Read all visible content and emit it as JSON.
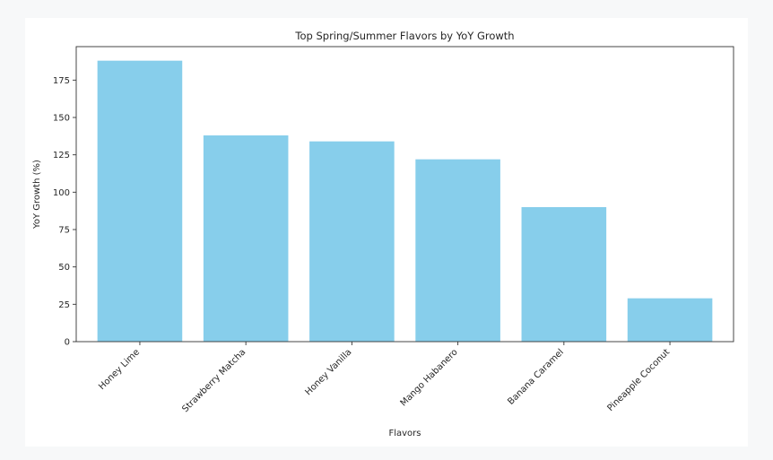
{
  "chart_data": {
    "type": "bar",
    "title": "Top Spring/Summer Flavors by YoY Growth",
    "xlabel": "Flavors",
    "ylabel": "YoY Growth (%)",
    "categories": [
      "Honey Lime",
      "Strawberry Matcha",
      "Honey Vanilla",
      "Mango Habanero",
      "Banana Caramel",
      "Pineapple Coconut"
    ],
    "values": [
      188,
      138,
      134,
      122,
      90,
      29
    ],
    "yticks": [
      0,
      25,
      50,
      75,
      100,
      125,
      150,
      175
    ],
    "ylim": [
      0,
      197.4
    ],
    "bar_color": "#87ceeb",
    "grid": false,
    "legend": "none"
  }
}
